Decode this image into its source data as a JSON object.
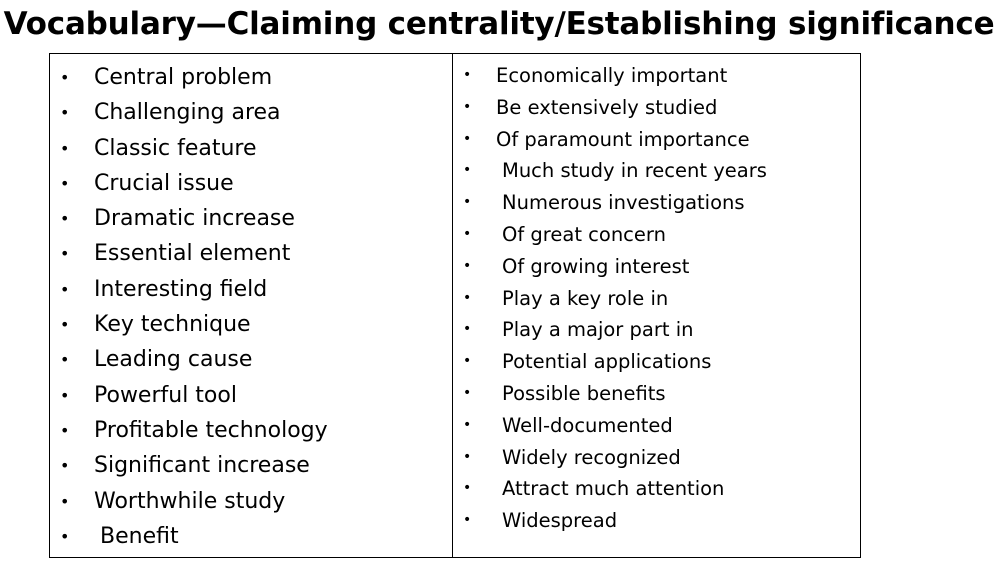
{
  "title": "Vocabulary—Claiming centrality/Establishing significance",
  "bullet_glyph": "•",
  "left_column": {
    "items": [
      {
        "label": "Central problem"
      },
      {
        "label": "Challenging area"
      },
      {
        "label": "Classic feature"
      },
      {
        "label": "Crucial issue"
      },
      {
        "label": "Dramatic increase"
      },
      {
        "label": "Essential element"
      },
      {
        "label": "Interesting field"
      },
      {
        "label": "Key technique"
      },
      {
        "label": "Leading cause"
      },
      {
        "label": "Powerful tool"
      },
      {
        "label": "Profitable technology"
      },
      {
        "label": "Significant increase"
      },
      {
        "label": "Worthwhile study"
      },
      {
        "label": "Benefit"
      }
    ]
  },
  "right_column": {
    "items": [
      {
        "label": "Economically important"
      },
      {
        "label": "Be extensively studied"
      },
      {
        "label": "Of paramount importance"
      },
      {
        "label": "Much study in recent years"
      },
      {
        "label": "Numerous investigations"
      },
      {
        "label": "Of great concern"
      },
      {
        "label": "Of growing interest"
      },
      {
        "label": "Play a key role in"
      },
      {
        "label": "Play a major part in"
      },
      {
        "label": "Potential applications"
      },
      {
        "label": "Possible benefits"
      },
      {
        "label": "Well-documented"
      },
      {
        "label": "Widely recognized"
      },
      {
        "label": "Attract much attention"
      },
      {
        "label": "Widespread"
      }
    ]
  }
}
